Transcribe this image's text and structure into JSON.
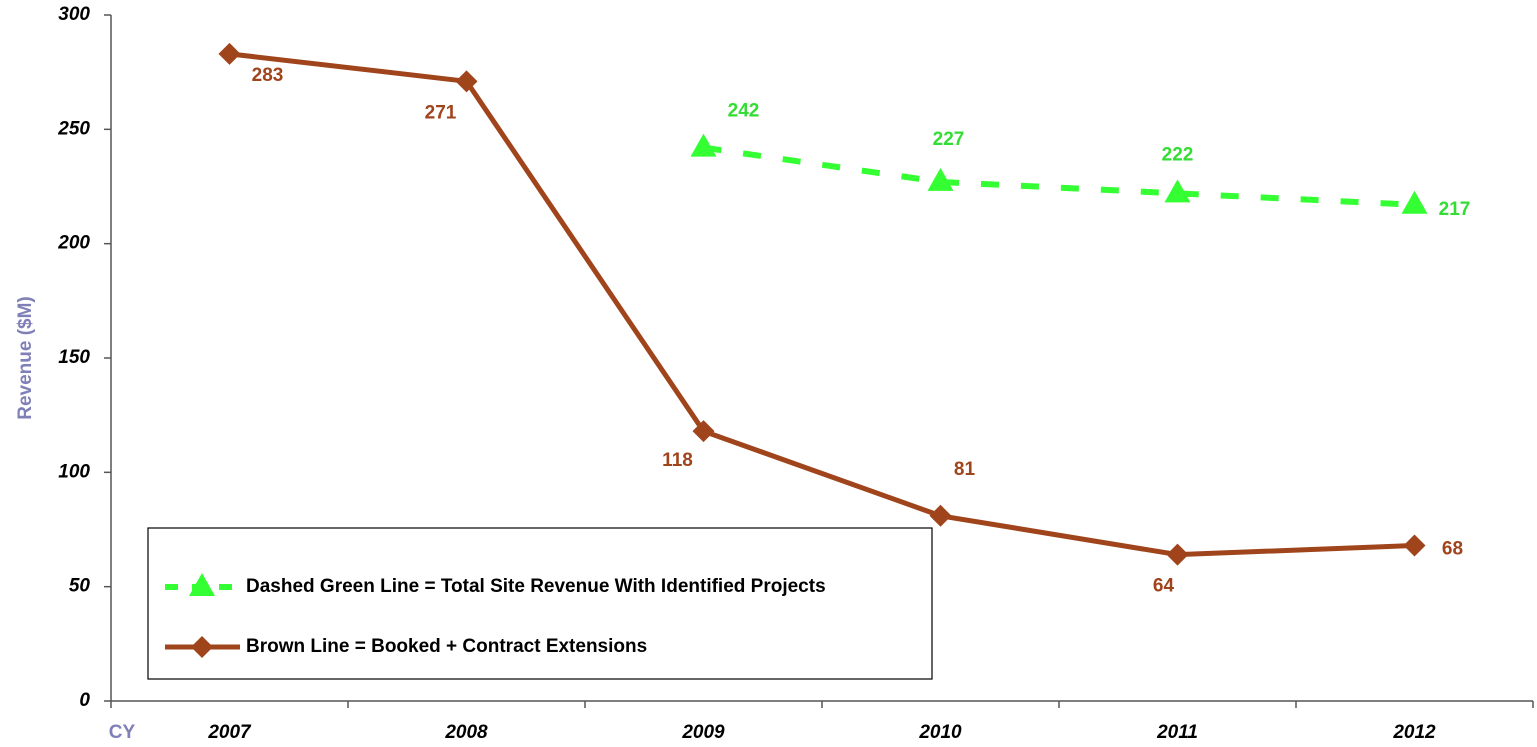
{
  "chart_data": {
    "type": "line",
    "x_label": "CY",
    "y_label": "Revenue ($M)",
    "categories": [
      "2007",
      "2008",
      "2009",
      "2010",
      "2011",
      "2012"
    ],
    "series": [
      {
        "name": "Dashed Green Line = Total Site Revenue With Identified Projects",
        "color": "#33ff33",
        "label_color": "#33dd33",
        "dashed": true,
        "marker": "triangle",
        "values": [
          null,
          null,
          242,
          227,
          222,
          217
        ]
      },
      {
        "name": "Brown Line = Booked + Contract Extensions",
        "color": "#a0441c",
        "label_color": "#a0441c",
        "dashed": false,
        "marker": "diamond",
        "values": [
          283,
          271,
          118,
          81,
          64,
          68
        ]
      }
    ],
    "ylim": [
      0,
      300
    ],
    "yticks": [
      0,
      50,
      100,
      150,
      200,
      250,
      300
    ],
    "grid": false,
    "legend": "lower left"
  }
}
